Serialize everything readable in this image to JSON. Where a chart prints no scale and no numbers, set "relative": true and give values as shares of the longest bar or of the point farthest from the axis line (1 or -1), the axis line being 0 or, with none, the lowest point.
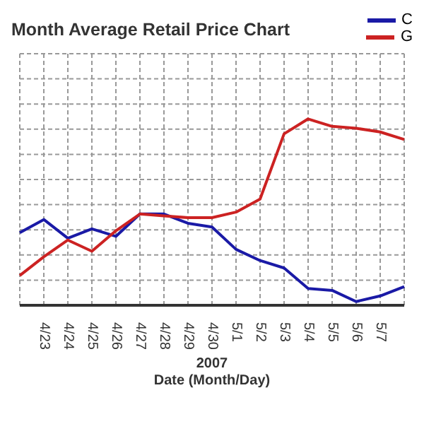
{
  "chart_data": {
    "type": "line",
    "title": "Month Average Retail Price Chart",
    "xlabel": "Date (Month/Day)",
    "annotations": [
      "2007"
    ],
    "relative": true,
    "grid": true,
    "legend": "top right",
    "marker": "none",
    "categories": [
      null,
      "4/23",
      "4/24",
      "4/25",
      "4/26",
      "4/27",
      "4/28",
      "4/29",
      "4/30",
      "5/1",
      "5/2",
      "5/3",
      "5/4",
      "5/5",
      "5/6",
      "5/7",
      null
    ],
    "series": [
      {
        "name": "C",
        "color": "#1a1aa6",
        "values": [
          0.39,
          0.46,
          0.36,
          0.41,
          0.37,
          0.49,
          0.49,
          0.44,
          0.42,
          0.3,
          0.24,
          0.2,
          0.09,
          0.08,
          0.02,
          0.05,
          0.1
        ]
      },
      {
        "name": "G",
        "color": "#cc2222",
        "values": [
          0.16,
          0.26,
          0.35,
          0.29,
          0.4,
          0.49,
          0.48,
          0.47,
          0.47,
          0.5,
          0.57,
          0.92,
          1,
          0.96,
          0.95,
          0.93,
          0.89
        ]
      }
    ]
  }
}
